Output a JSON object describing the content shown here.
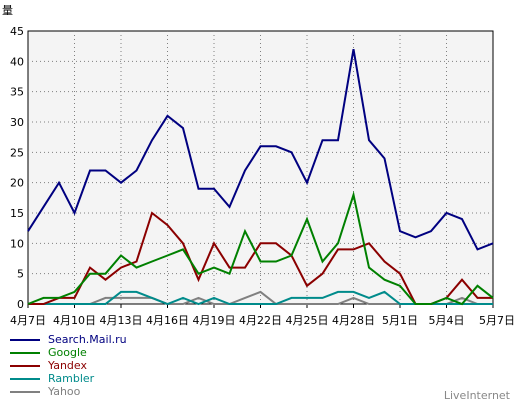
{
  "chart_data": {
    "type": "line",
    "unit_label": "量",
    "ylim": [
      0,
      45
    ],
    "y_ticks": [
      0,
      5,
      10,
      15,
      20,
      25,
      30,
      35,
      40,
      45
    ],
    "x_tick_labels": [
      "4月7日",
      "4月10日",
      "4月13日",
      "4月16日",
      "4月19日",
      "4月22日",
      "4月25日",
      "4月28日",
      "5月1日",
      "5月4日",
      "5月7日"
    ],
    "x_tick_positions": [
      0,
      3,
      6,
      9,
      12,
      15,
      18,
      21,
      24,
      27,
      30
    ],
    "grid": true,
    "legend_position": "bottom-left",
    "series": [
      {
        "name": "Search.Mail.ru",
        "color": "#000080",
        "values": [
          12,
          16,
          20,
          15,
          22,
          22,
          20,
          22,
          27,
          31,
          29,
          19,
          19,
          16,
          22,
          26,
          26,
          25,
          20,
          27,
          27,
          42,
          27,
          24,
          12,
          11,
          12,
          15,
          14,
          9,
          10
        ]
      },
      {
        "name": "Google",
        "color": "#008000",
        "values": [
          0,
          1,
          1,
          2,
          5,
          5,
          8,
          6,
          7,
          8,
          9,
          5,
          6,
          5,
          12,
          7,
          7,
          8,
          14,
          7,
          10,
          18,
          6,
          4,
          3,
          0,
          0,
          1,
          0,
          3,
          1
        ]
      },
      {
        "name": "Yandex",
        "color": "#8b0000",
        "values": [
          0,
          0,
          1,
          1,
          6,
          4,
          6,
          7,
          15,
          13,
          10,
          4,
          10,
          6,
          6,
          10,
          10,
          8,
          3,
          5,
          9,
          9,
          10,
          7,
          5,
          0,
          0,
          1,
          4,
          1,
          1
        ]
      },
      {
        "name": "Rambler",
        "color": "#008b8b",
        "values": [
          0,
          0,
          0,
          0,
          0,
          0,
          2,
          2,
          1,
          0,
          1,
          0,
          1,
          0,
          0,
          0,
          0,
          1,
          1,
          1,
          2,
          2,
          1,
          2,
          0,
          0,
          0,
          0,
          0,
          0,
          0
        ]
      },
      {
        "name": "Yahoo",
        "color": "#808080",
        "values": [
          0,
          0,
          0,
          0,
          0,
          1,
          1,
          1,
          1,
          0,
          0,
          1,
          0,
          0,
          1,
          2,
          0,
          0,
          0,
          0,
          0,
          1,
          0,
          0,
          0,
          0,
          0,
          0,
          1,
          0,
          0
        ]
      }
    ]
  },
  "brand": "LiveInternet"
}
